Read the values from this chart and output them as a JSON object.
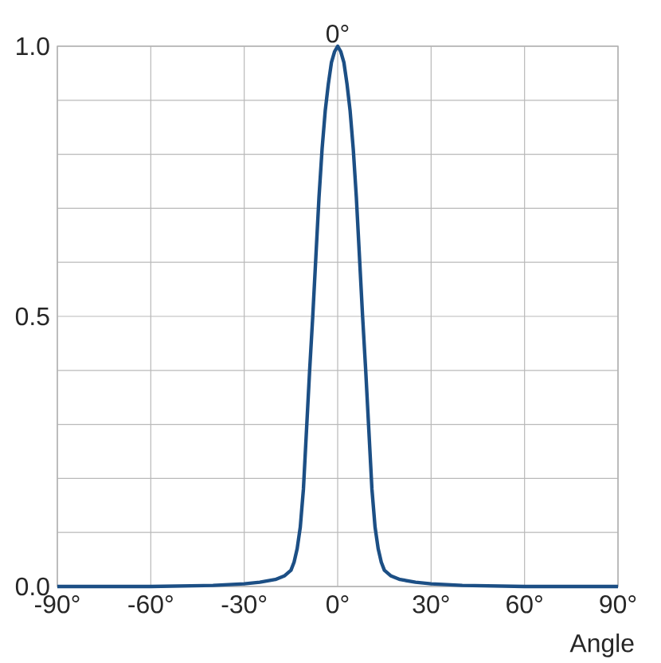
{
  "chart_data": {
    "type": "line",
    "xlabel": "Angle",
    "annotations": [
      {
        "text": "0°",
        "x": 0,
        "y": 1.0
      }
    ],
    "x": [
      -90,
      -60,
      -40,
      -30,
      -25,
      -20,
      -17,
      -15,
      -14,
      -13,
      -12,
      -11,
      -10,
      -9,
      -8,
      -7,
      -6,
      -5,
      -4,
      -3,
      -2,
      -1,
      0,
      1,
      2,
      3,
      4,
      5,
      6,
      7,
      8,
      9,
      10,
      11,
      12,
      13,
      14,
      15,
      17,
      20,
      25,
      30,
      40,
      60,
      90
    ],
    "series": [
      {
        "color": "#1c4f85",
        "values": [
          0,
          0,
          0.002,
          0.005,
          0.008,
          0.013,
          0.02,
          0.03,
          0.045,
          0.07,
          0.11,
          0.18,
          0.29,
          0.4,
          0.5,
          0.61,
          0.72,
          0.81,
          0.88,
          0.93,
          0.97,
          0.99,
          1,
          0.99,
          0.97,
          0.93,
          0.88,
          0.81,
          0.72,
          0.61,
          0.5,
          0.4,
          0.29,
          0.18,
          0.11,
          0.07,
          0.045,
          0.03,
          0.02,
          0.013,
          0.008,
          0.005,
          0.002,
          0,
          0
        ]
      }
    ],
    "xlim": [
      -90,
      90
    ],
    "ylim": [
      0,
      1
    ],
    "xticks": [
      {
        "value": -90,
        "label": "-90°"
      },
      {
        "value": -60,
        "label": "-60°"
      },
      {
        "value": -30,
        "label": "-30°"
      },
      {
        "value": 0,
        "label": "0°"
      },
      {
        "value": 30,
        "label": "30°"
      },
      {
        "value": 60,
        "label": "60°"
      },
      {
        "value": 90,
        "label": "90°"
      }
    ],
    "yticks": [
      {
        "value": 0,
        "label": "0.0"
      },
      {
        "value": 0.1,
        "label": null
      },
      {
        "value": 0.2,
        "label": null
      },
      {
        "value": 0.3,
        "label": null
      },
      {
        "value": 0.4,
        "label": null
      },
      {
        "value": 0.5,
        "label": "0.5"
      },
      {
        "value": 0.6,
        "label": null
      },
      {
        "value": 0.7,
        "label": null
      },
      {
        "value": 0.8,
        "label": null
      },
      {
        "value": 0.9,
        "label": null
      },
      {
        "value": 1,
        "label": "1.0"
      }
    ],
    "grid": true,
    "marker": "none",
    "line_style": "solid"
  }
}
